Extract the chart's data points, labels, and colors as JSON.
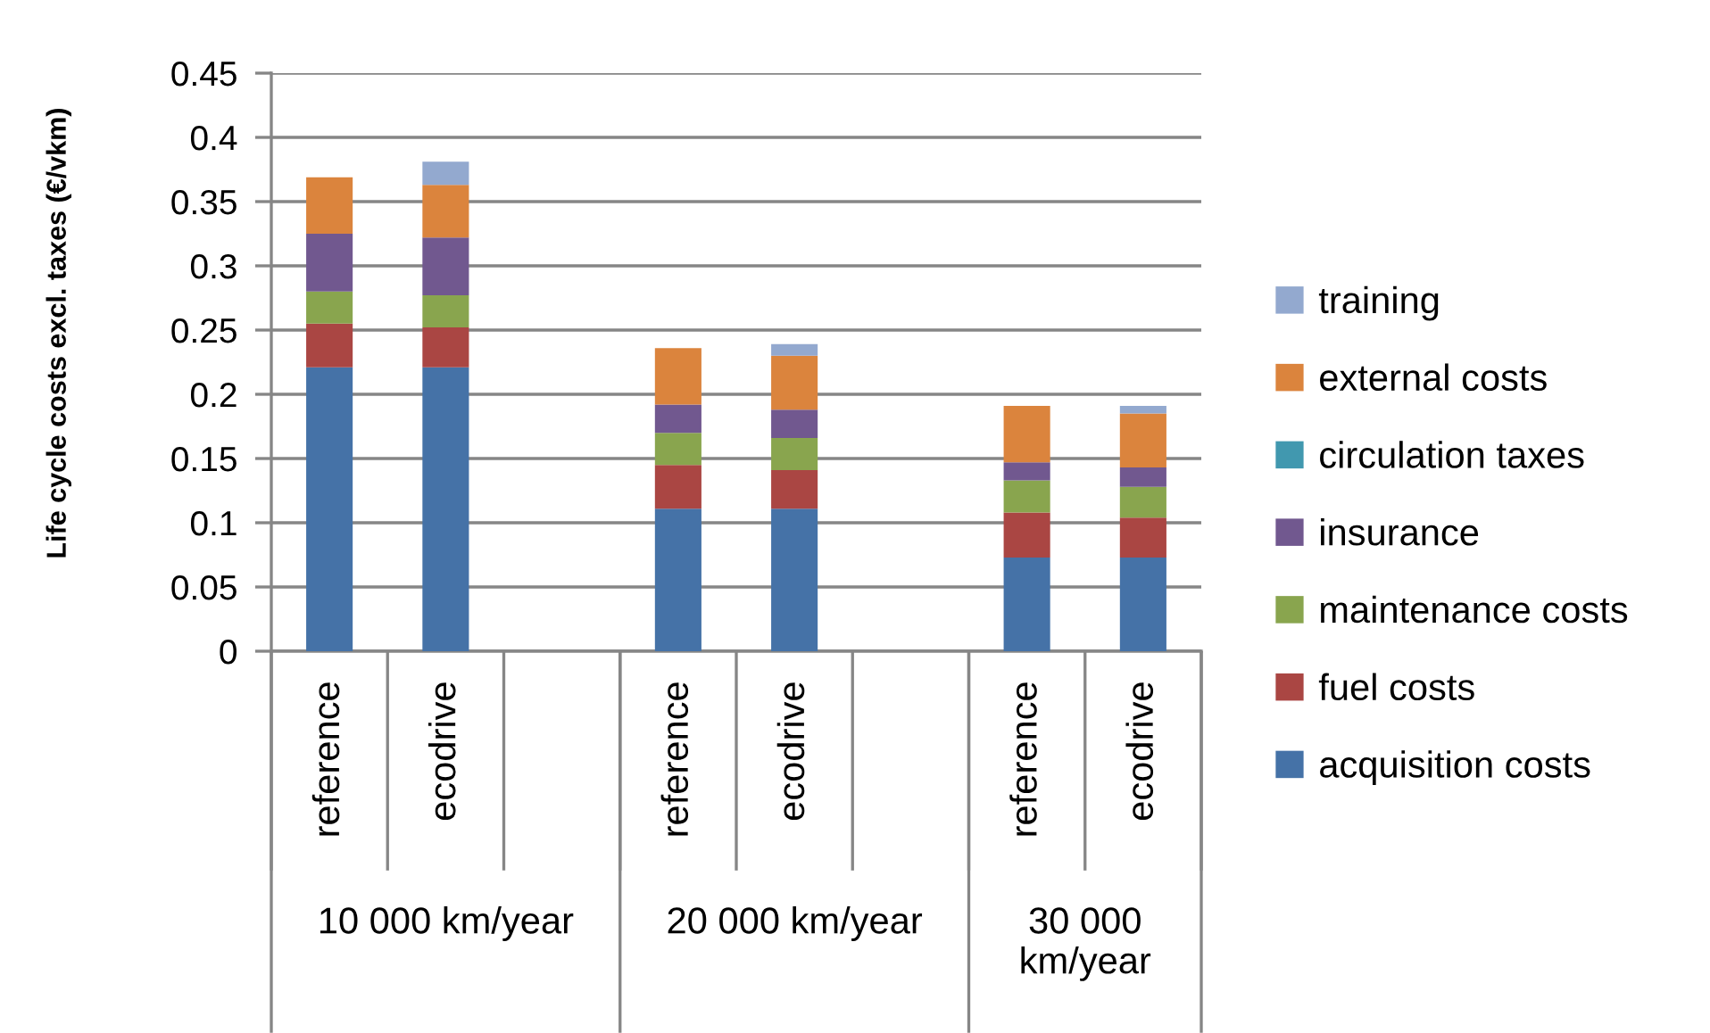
{
  "chart_data": {
    "type": "bar",
    "stacked": true,
    "ylabel": "Life cycle costs excl. taxes (€/vkm)",
    "categories": [
      "reference",
      "ecodrive",
      null,
      "reference",
      "ecodrive",
      null,
      "reference",
      "ecodrive"
    ],
    "series": [
      {
        "name": "acquisition costs",
        "color": "#4572a7",
        "values": [
          0.221,
          0.221,
          null,
          0.111,
          0.111,
          null,
          0.073,
          0.073
        ]
      },
      {
        "name": "fuel costs",
        "color": "#aa4643",
        "values": [
          0.034,
          0.031,
          null,
          0.034,
          0.03,
          null,
          0.035,
          0.031
        ]
      },
      {
        "name": "maintenance costs",
        "color": "#89a54e",
        "values": [
          0.025,
          0.025,
          null,
          0.025,
          0.025,
          null,
          0.025,
          0.024
        ]
      },
      {
        "name": "insurance",
        "color": "#71588f",
        "values": [
          0.045,
          0.045,
          null,
          0.022,
          0.022,
          null,
          0.014,
          0.015
        ]
      },
      {
        "name": "circulation taxes",
        "color": "#4198af",
        "values": [
          null,
          null,
          null,
          null,
          null,
          null,
          null,
          null
        ]
      },
      {
        "name": "external costs",
        "color": "#db843d",
        "values": [
          0.044,
          0.041,
          null,
          0.044,
          0.042,
          null,
          0.044,
          0.042
        ]
      },
      {
        "name": "training",
        "color": "#93a9cf",
        "values": [
          null,
          0.018,
          null,
          null,
          0.009,
          null,
          null,
          0.006
        ]
      }
    ],
    "ylim": [
      0,
      0.45
    ],
    "yticks": [
      0,
      0.05,
      0.1,
      0.15,
      0.2,
      0.25,
      0.3,
      0.35,
      0.4,
      0.45
    ],
    "grid": "y",
    "legend": "right",
    "annotations": [
      "10 000 km/year",
      "20 000 km/year",
      "30 000 km/year"
    ]
  }
}
